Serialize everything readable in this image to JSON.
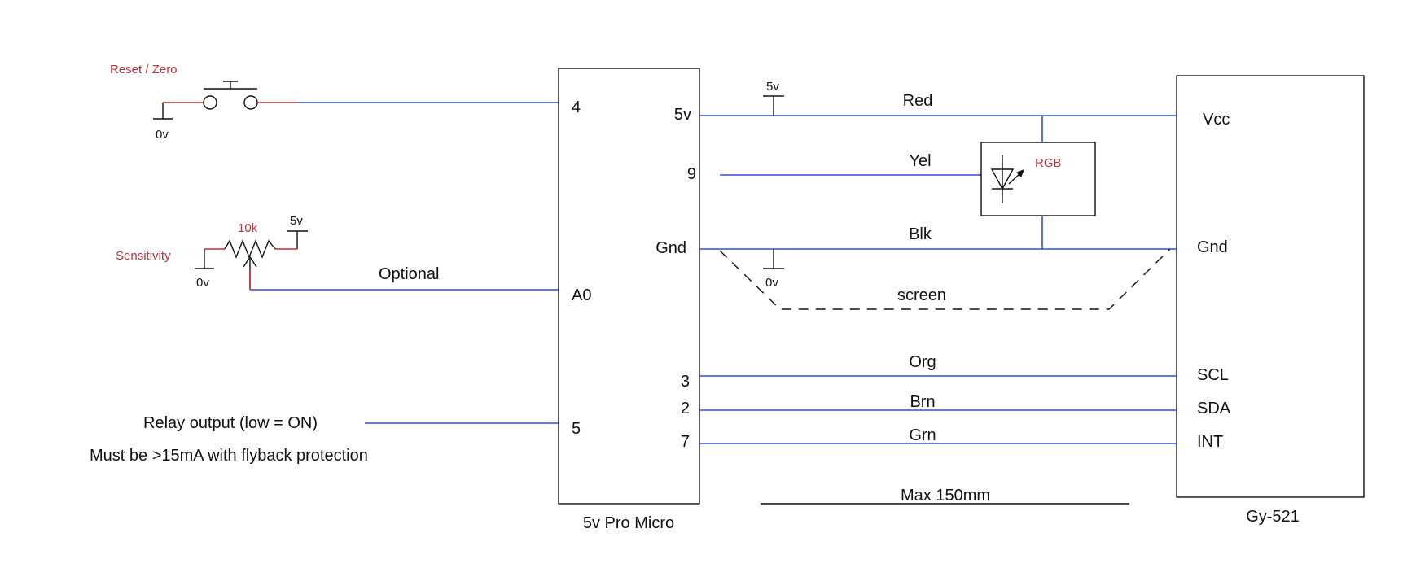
{
  "labels": {
    "reset_zero": "Reset / Zero",
    "gnd_0v_reset": "0v",
    "sensitivity": "Sensitivity",
    "pot_value": "10k",
    "pot_5v": "5v",
    "pot_0v": "0v",
    "optional": "Optional",
    "relay_output": "Relay output (low = ON)",
    "relay_note": "Must be  >15mA with flyback protection",
    "supply_5v": "5v",
    "gnd_0v_blk": "0v",
    "rgb": "RGB",
    "screen": "screen",
    "max_length": "Max 150mm"
  },
  "pro_micro": {
    "title": "5v Pro Micro",
    "pins_left": [
      "4",
      "A0",
      "5"
    ],
    "pins_right": [
      "5v",
      "9",
      "Gnd",
      "3",
      "2",
      "7"
    ]
  },
  "gy521": {
    "title": "Gy-521",
    "pins": [
      "Vcc",
      "Gnd",
      "SCL",
      "SDA",
      "INT"
    ]
  },
  "wire_colors": {
    "red": "Red",
    "yel": "Yel",
    "blk": "Blk",
    "org": "Org",
    "brn": "Brn",
    "grn": "Grn"
  },
  "colors": {
    "wire": "#2f4ed8",
    "accent": "#c0303a",
    "line": "#111111"
  }
}
